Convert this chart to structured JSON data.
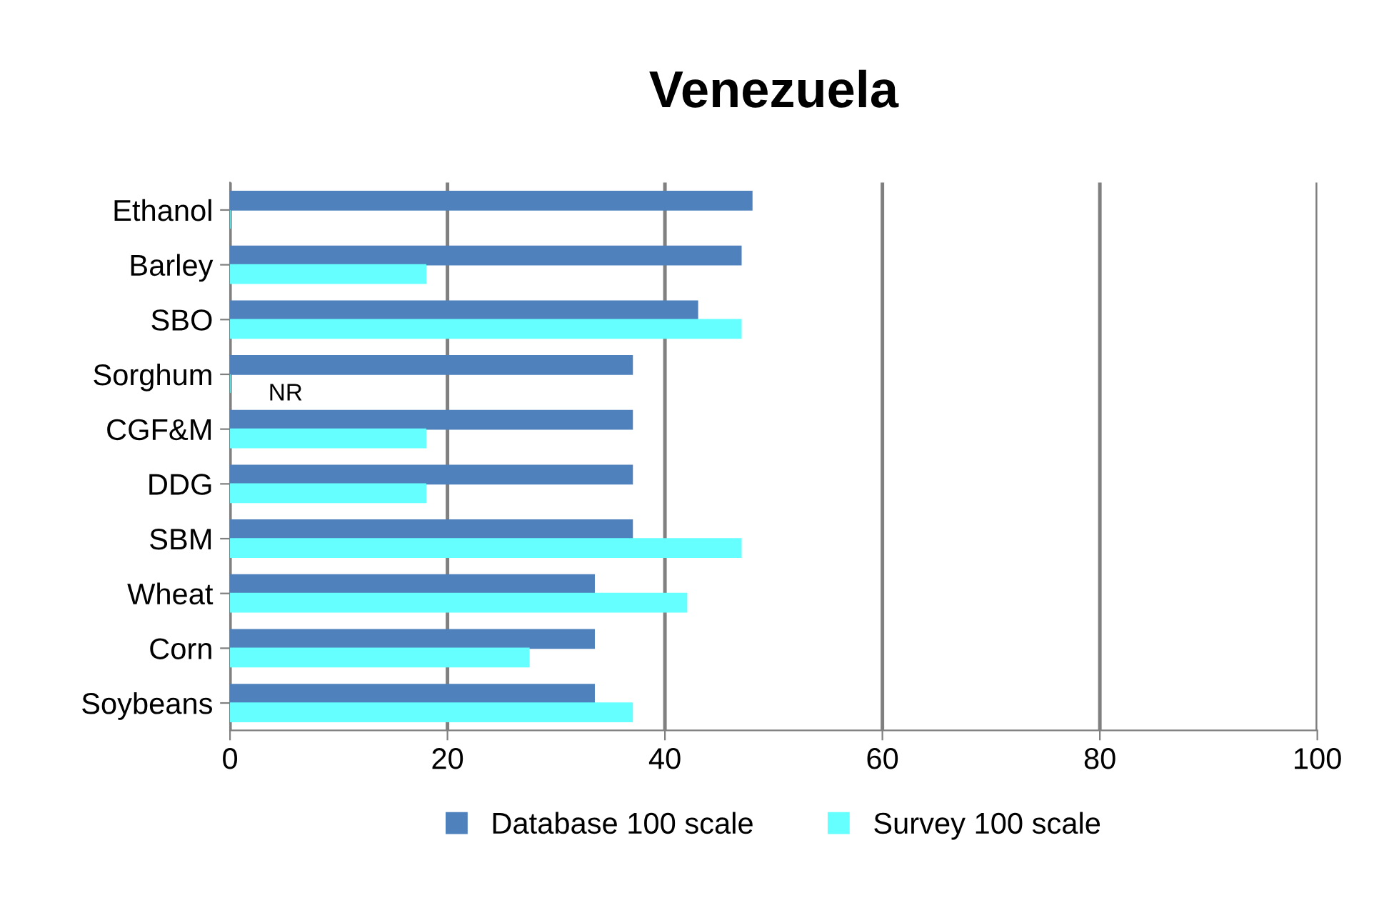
{
  "chart_data": {
    "type": "bar",
    "orientation": "horizontal",
    "title": "Venezuela",
    "categories": [
      "Ethanol",
      "Barley",
      "SBO",
      "Sorghum",
      "CGF&M",
      "DDG",
      "SBM",
      "Wheat",
      "Corn",
      "Soybeans"
    ],
    "series": [
      {
        "name": "Database 100 scale",
        "color": "#4f81bd",
        "values": [
          48,
          47,
          43,
          37,
          37,
          37,
          37,
          33.5,
          33.5,
          33.5
        ]
      },
      {
        "name": "Survey 100 scale",
        "color": "#66ffff",
        "values": [
          0,
          18,
          47,
          0,
          18,
          18,
          47,
          42,
          27.5,
          37
        ]
      }
    ],
    "annotations": [
      {
        "text": "NR",
        "x": 0,
        "y": "Sorghum"
      }
    ],
    "xlim": [
      0,
      100
    ],
    "xticks": [
      0,
      20,
      40,
      60,
      80,
      100
    ],
    "grid": "x",
    "legend": "bottom"
  }
}
